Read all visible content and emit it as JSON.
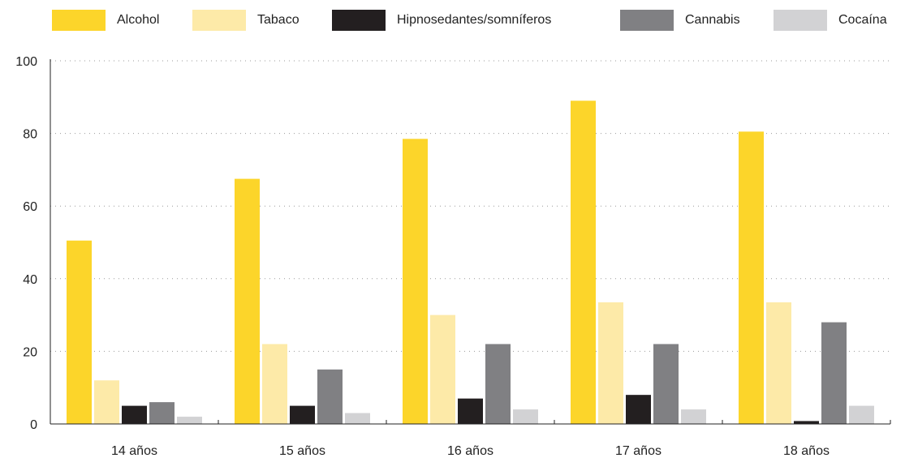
{
  "chart_data": {
    "type": "bar",
    "categories": [
      "14 años",
      "15 años",
      "16 años",
      "17 años",
      "18 años"
    ],
    "series": [
      {
        "name": "Alcohol",
        "color": "#fcd52a",
        "values": [
          50.5,
          67.5,
          78.5,
          89,
          80.5
        ]
      },
      {
        "name": "Tabaco",
        "color": "#fdeaa8",
        "values": [
          12,
          22,
          30,
          33.5,
          33.5
        ]
      },
      {
        "name": "Hipnosedantes/somníferos",
        "color": "#231f20",
        "values": [
          5,
          5,
          7,
          8,
          0.8
        ]
      },
      {
        "name": "Cannabis",
        "color": "#808083",
        "values": [
          6,
          15,
          22,
          22,
          28
        ]
      },
      {
        "name": "Cocaína",
        "color": "#d2d2d4",
        "values": [
          2,
          3,
          4,
          4,
          5
        ]
      }
    ],
    "y_ticks": [
      "0",
      "20",
      "40",
      "60",
      "80",
      "100"
    ],
    "ylim": [
      0,
      100
    ],
    "grid": "horizontal dotted",
    "legend_position": "top"
  }
}
